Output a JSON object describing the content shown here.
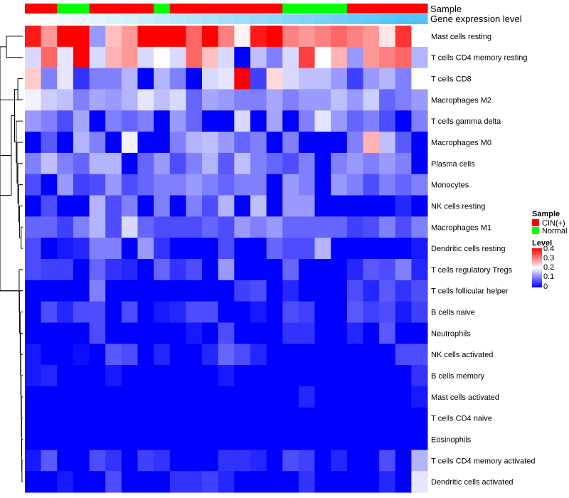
{
  "chart_data": {
    "type": "heatmap",
    "annotation_labels": [
      "Sample",
      "Gene expression level"
    ],
    "sample_groups": [
      "CIN(+)",
      "CIN(+)",
      "Normal",
      "Normal",
      "CIN(+)",
      "CIN(+)",
      "CIN(+)",
      "CIN(+)",
      "Normal",
      "CIN(+)",
      "CIN(+)",
      "CIN(+)",
      "CIN(+)",
      "CIN(+)",
      "CIN(+)",
      "CIN(+)",
      "Normal",
      "Normal",
      "Normal",
      "Normal",
      "CIN(+)",
      "CIN(+)",
      "CIN(+)",
      "CIN(+)",
      "CIN(+)"
    ],
    "expression_level": [
      0.03,
      0.05,
      0.07,
      0.09,
      0.11,
      0.13,
      0.15,
      0.17,
      0.19,
      0.21,
      0.23,
      0.25,
      0.27,
      0.29,
      0.31,
      0.33,
      0.35,
      0.37,
      0.39,
      0.41,
      0.43,
      0.45,
      0.47,
      0.49,
      0.5
    ],
    "rows": [
      "Mast cells resting",
      "T cells CD4 memory resting",
      "T cells CD8",
      "Macrophages M2",
      "T cells gamma delta",
      "Macrophages M0",
      "Plasma cells",
      "Monocytes",
      "NK cells resting",
      "Macrophages M1",
      "Dendritic cells resting",
      "T cells regulatory  Tregs",
      "T cells follicular helper",
      "B cells naive",
      "Neutrophils",
      "NK cells activated",
      "B cells memory",
      "Mast cells activated",
      "T cells CD4 naive",
      "Eosinophils",
      "T cells CD4 memory activated",
      "Dendritic cells activated"
    ],
    "values": [
      [
        0.38,
        0.28,
        0.4,
        0.4,
        0.12,
        0.25,
        0.28,
        0.4,
        0.4,
        0.4,
        0.32,
        0.4,
        0.3,
        0.21,
        0.38,
        0.4,
        0.3,
        0.28,
        0.3,
        0.32,
        0.3,
        0.28,
        0.22,
        0.36,
        0.2
      ],
      [
        0.17,
        0.32,
        0.18,
        0.4,
        0.17,
        0.26,
        0.28,
        0.17,
        0.2,
        0.17,
        0.32,
        0.25,
        0.17,
        0.0,
        0.15,
        0.1,
        0.17,
        0.35,
        0.2,
        0.26,
        0.12,
        0.28,
        0.3,
        0.32,
        0.14
      ],
      [
        0.24,
        0.1,
        0.18,
        0.04,
        0.1,
        0.1,
        0.14,
        0.0,
        0.14,
        0.1,
        0.0,
        0.17,
        0.18,
        0.4,
        0.05,
        0.23,
        0.17,
        0.15,
        0.15,
        0.12,
        0.05,
        0.12,
        0.14,
        0.1,
        0.2
      ],
      [
        0.19,
        0.16,
        0.15,
        0.1,
        0.13,
        0.12,
        0.14,
        0.18,
        0.15,
        0.17,
        0.08,
        0.13,
        0.12,
        0.1,
        0.1,
        0.13,
        0.1,
        0.12,
        0.12,
        0.15,
        0.12,
        0.16,
        0.08,
        0.1,
        0.12
      ],
      [
        0.12,
        0.1,
        0.06,
        0.13,
        0.0,
        0.1,
        0.08,
        0.1,
        0.0,
        0.12,
        0.08,
        0.0,
        0.0,
        0.17,
        0.0,
        0.13,
        0.0,
        0.1,
        0.18,
        0.12,
        0.08,
        0.1,
        0.06,
        0.0,
        0.1
      ],
      [
        0.0,
        0.07,
        0.0,
        0.14,
        0.1,
        0.0,
        0.19,
        0.0,
        0.0,
        0.1,
        0.14,
        0.15,
        0.12,
        0.08,
        0.1,
        0.0,
        0.1,
        0.0,
        0.0,
        0.0,
        0.1,
        0.26,
        0.15,
        0.07,
        0.0
      ],
      [
        0.1,
        0.15,
        0.1,
        0.08,
        0.14,
        0.14,
        0.0,
        0.08,
        0.12,
        0.06,
        0.1,
        0.14,
        0.07,
        0.15,
        0.1,
        0.08,
        0.06,
        0.1,
        0.0,
        0.1,
        0.12,
        0.1,
        0.12,
        0.1,
        0.0
      ],
      [
        0.06,
        0.0,
        0.12,
        0.05,
        0.06,
        0.12,
        0.06,
        0.08,
        0.1,
        0.1,
        0.12,
        0.1,
        0.08,
        0.1,
        0.1,
        0.0,
        0.12,
        0.1,
        0.0,
        0.12,
        0.1,
        0.06,
        0.1,
        0.08,
        0.1
      ],
      [
        0.0,
        0.06,
        0.0,
        0.0,
        0.14,
        0.06,
        0.1,
        0.0,
        0.1,
        0.0,
        0.1,
        0.06,
        0.14,
        0.0,
        0.15,
        0.0,
        0.12,
        0.12,
        0.0,
        0.0,
        0.0,
        0.0,
        0.0,
        0.03,
        0.0
      ],
      [
        0.08,
        0.08,
        0.05,
        0.1,
        0.14,
        0.06,
        0.17,
        0.08,
        0.06,
        0.06,
        0.06,
        0.08,
        0.06,
        0.12,
        0.1,
        0.12,
        0.08,
        0.08,
        0.08,
        0.08,
        0.05,
        0.06,
        0.1,
        0.06,
        0.1
      ],
      [
        0.06,
        0.0,
        0.02,
        0.03,
        0.1,
        0.1,
        0.0,
        0.12,
        0.04,
        0.0,
        0.0,
        0.0,
        0.06,
        0.0,
        0.0,
        0.08,
        0.06,
        0.06,
        0.14,
        0.0,
        0.0,
        0.0,
        0.0,
        0.0,
        0.02
      ],
      [
        0.06,
        0.05,
        0.05,
        0.0,
        0.08,
        0.04,
        0.03,
        0.0,
        0.08,
        0.04,
        0.06,
        0.0,
        0.12,
        0.0,
        0.0,
        0.0,
        0.08,
        0.0,
        0.0,
        0.0,
        0.03,
        0.07,
        0.06,
        0.1,
        0.03
      ],
      [
        0.0,
        0.0,
        0.0,
        0.0,
        0.1,
        0.0,
        0.0,
        0.0,
        0.0,
        0.0,
        0.0,
        0.0,
        0.0,
        0.05,
        0.06,
        0.0,
        0.03,
        0.0,
        0.0,
        0.0,
        0.06,
        0.03,
        0.07,
        0.04,
        0.06
      ],
      [
        0.0,
        0.06,
        0.03,
        0.06,
        0.06,
        0.0,
        0.06,
        0.0,
        0.02,
        0.03,
        0.06,
        0.06,
        0.0,
        0.0,
        0.02,
        0.0,
        0.06,
        0.05,
        0.0,
        0.0,
        0.07,
        0.05,
        0.06,
        0.02,
        0.05
      ],
      [
        0.0,
        0.0,
        0.0,
        0.0,
        0.06,
        0.0,
        0.0,
        0.0,
        0.0,
        0.0,
        0.02,
        0.0,
        0.06,
        0.0,
        0.0,
        0.0,
        0.04,
        0.04,
        0.0,
        0.0,
        0.03,
        0.0,
        0.07,
        0.0,
        0.0
      ],
      [
        0.02,
        0.0,
        0.0,
        0.01,
        0.0,
        0.07,
        0.06,
        0.0,
        0.03,
        0.0,
        0.0,
        0.03,
        0.08,
        0.06,
        0.03,
        0.0,
        0.0,
        0.0,
        0.0,
        0.0,
        0.0,
        0.0,
        0.0,
        0.06,
        0.06
      ],
      [
        0.02,
        0.03,
        0.0,
        0.0,
        0.0,
        0.02,
        0.0,
        0.0,
        0.0,
        0.0,
        0.0,
        0.0,
        0.02,
        0.0,
        0.0,
        0.0,
        0.0,
        0.0,
        0.0,
        0.0,
        0.0,
        0.0,
        0.0,
        0.0,
        0.04
      ],
      [
        0.0,
        0.0,
        0.0,
        0.0,
        0.0,
        0.0,
        0.0,
        0.0,
        0.0,
        0.0,
        0.0,
        0.0,
        0.0,
        0.0,
        0.0,
        0.0,
        0.0,
        0.03,
        0.0,
        0.0,
        0.0,
        0.0,
        0.0,
        0.0,
        0.02
      ],
      [
        0.0,
        0.0,
        0.0,
        0.0,
        0.0,
        0.0,
        0.0,
        0.0,
        0.0,
        0.0,
        0.0,
        0.0,
        0.0,
        0.0,
        0.0,
        0.0,
        0.0,
        0.0,
        0.0,
        0.0,
        0.0,
        0.0,
        0.0,
        0.0,
        0.0
      ],
      [
        0.0,
        0.0,
        0.0,
        0.0,
        0.0,
        0.0,
        0.0,
        0.0,
        0.0,
        0.0,
        0.0,
        0.0,
        0.0,
        0.0,
        0.0,
        0.0,
        0.0,
        0.0,
        0.0,
        0.0,
        0.0,
        0.0,
        0.0,
        0.0,
        0.0
      ],
      [
        0.02,
        0.07,
        0.0,
        0.0,
        0.06,
        0.04,
        0.0,
        0.05,
        0.04,
        0.0,
        0.0,
        0.0,
        0.04,
        0.04,
        0.03,
        0.0,
        0.06,
        0.05,
        0.0,
        0.03,
        0.0,
        0.0,
        0.06,
        0.0,
        0.14
      ],
      [
        0.0,
        0.0,
        0.02,
        0.0,
        0.0,
        0.06,
        0.0,
        0.0,
        0.0,
        0.04,
        0.04,
        0.05,
        0.03,
        0.0,
        0.0,
        0.0,
        0.0,
        0.04,
        0.0,
        0.0,
        0.0,
        0.0,
        0.03,
        0.0,
        0.18
      ]
    ],
    "legend_sample": {
      "title": "Sample",
      "items": [
        {
          "label": "CIN(+)",
          "color": "#ff0000"
        },
        {
          "label": "Normal",
          "color": "#00ff00"
        }
      ]
    },
    "legend_level": {
      "title": "Level",
      "ticks": [
        "0.4",
        "0.3",
        "0.2",
        "0.1",
        "0"
      ],
      "range": [
        0,
        0.4
      ]
    },
    "colors": {
      "low": "#0000ff",
      "mid": "#ffffff",
      "high": "#ff0000",
      "cin": "#ff0000",
      "normal": "#00ff00",
      "expr_low": "#ffffff",
      "expr_high": "#4fc3f7",
      "dendrogram": "#000000"
    },
    "xlabel": "",
    "ylabel": "",
    "title": ""
  }
}
